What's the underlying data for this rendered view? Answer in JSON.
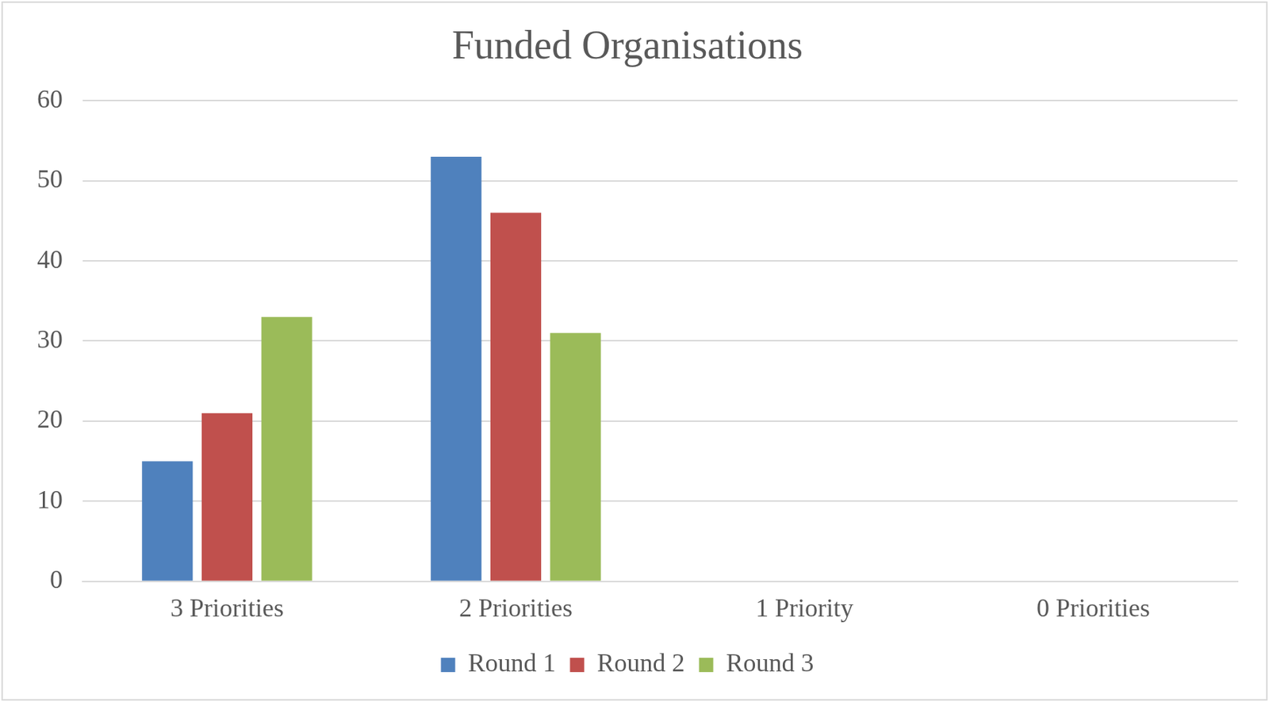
{
  "chart_data": {
    "type": "bar",
    "title": "Funded Organisations",
    "categories": [
      "3 Priorities",
      "2 Priorities",
      "1 Priority",
      "0 Priorities"
    ],
    "series": [
      {
        "name": "Round 1",
        "color": "#4f81bd",
        "values": [
          15,
          53,
          0,
          0
        ]
      },
      {
        "name": "Round 2",
        "color": "#c0504d",
        "values": [
          21,
          46,
          0,
          0
        ]
      },
      {
        "name": "Round 3",
        "color": "#9bbb59",
        "values": [
          33,
          31,
          0,
          0
        ]
      }
    ],
    "ylim": [
      0,
      60
    ],
    "yticks": [
      0,
      10,
      20,
      30,
      40,
      50,
      60
    ],
    "grid": true,
    "legend": "bottom"
  }
}
